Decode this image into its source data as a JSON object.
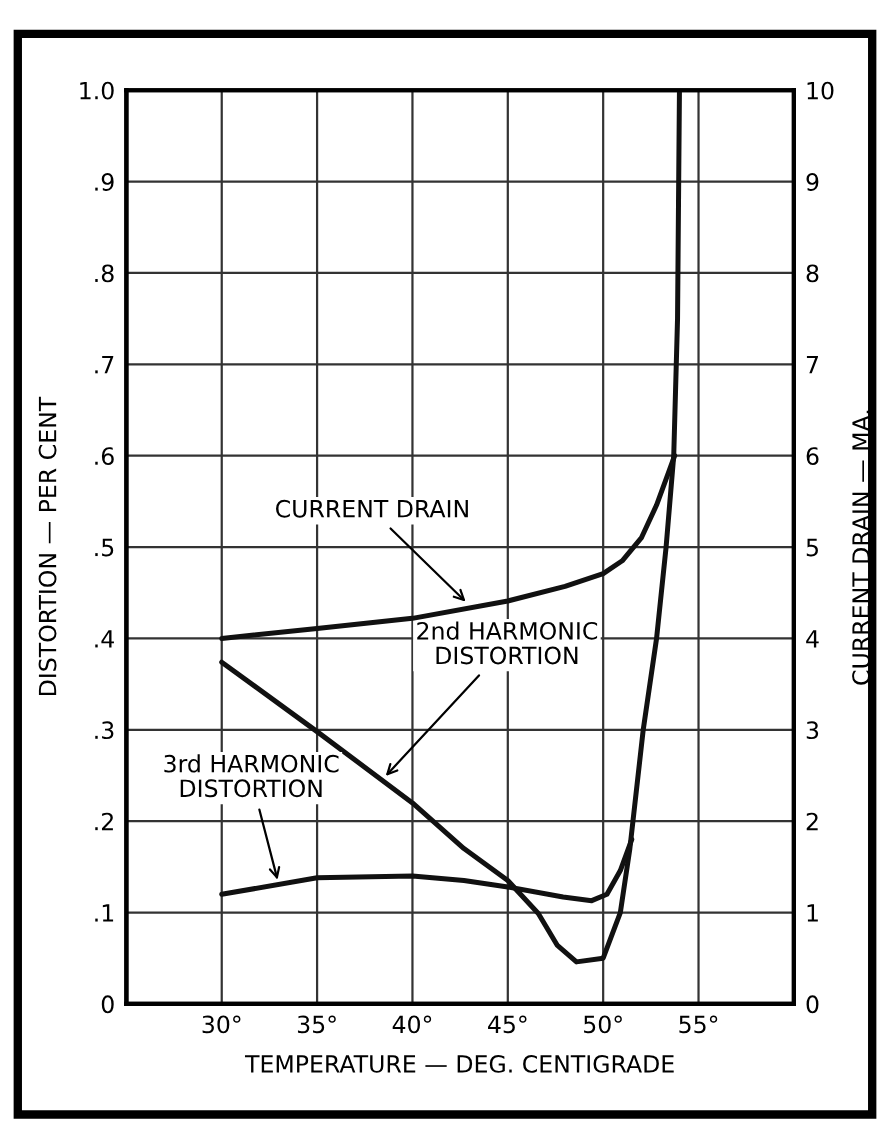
{
  "chart_data": {
    "type": "line",
    "xlabel": "TEMPERATURE — DEG. CENTIGRADE",
    "ylabel": "DISTORTION — PER CENT",
    "y2label": "CURRENT DRAIN — MA.",
    "xlim": [
      25,
      60
    ],
    "xticks": [
      {
        "value": 30,
        "label": "30°"
      },
      {
        "value": 35,
        "label": "35°"
      },
      {
        "value": 40,
        "label": "40°"
      },
      {
        "value": 45,
        "label": "45°"
      },
      {
        "value": 50,
        "label": "50°"
      },
      {
        "value": 55,
        "label": "55°"
      }
    ],
    "ylim": [
      0,
      1.0
    ],
    "yticks": [
      0,
      {
        "value": 0.1,
        "label": ".1"
      },
      {
        "value": 0.2,
        "label": ".2"
      },
      {
        "value": 0.3,
        "label": ".3"
      },
      {
        "value": 0.4,
        "label": ".4"
      },
      {
        "value": 0.5,
        "label": ".5"
      },
      {
        "value": 0.6,
        "label": ".6"
      },
      {
        "value": 0.7,
        "label": ".7"
      },
      {
        "value": 0.8,
        "label": ".8"
      },
      {
        "value": 0.9,
        "label": ".9"
      },
      {
        "value": 1.0,
        "label": "1.0"
      }
    ],
    "y2lim": [
      0,
      10
    ],
    "y2ticks": [
      0,
      1,
      2,
      3,
      4,
      5,
      6,
      7,
      8,
      9,
      10
    ],
    "grid": true,
    "legend": false,
    "marker": "none",
    "line_style": "solid",
    "series": [
      {
        "color": "#111111",
        "axis": "y2",
        "x": [
          30,
          35,
          40,
          45,
          48,
          50,
          51,
          52,
          52.8,
          53.4,
          53.75
        ],
        "values": [
          4.0,
          4.11,
          4.22,
          4.41,
          4.57,
          4.71,
          4.85,
          5.1,
          5.46,
          5.8,
          6.0
        ]
      },
      {
        "color": "#111111",
        "x": [
          30,
          35,
          40,
          42.7,
          45,
          46.6,
          47.6,
          48.6,
          50,
          50.9,
          51.4,
          52.1,
          52.8,
          53.3,
          53.7,
          53.9,
          54.0
        ],
        "values": [
          0.374,
          0.298,
          0.22,
          0.17,
          0.135,
          0.099,
          0.064,
          0.046,
          0.05,
          0.1,
          0.17,
          0.3,
          0.4,
          0.5,
          0.6,
          0.75,
          1.0
        ]
      },
      {
        "color": "#111111",
        "x": [
          30,
          35,
          40,
          42.7,
          45,
          47.9,
          49.4,
          50.2,
          50.9,
          51.5
        ],
        "values": [
          0.12,
          0.138,
          0.14,
          0.135,
          0.128,
          0.117,
          0.113,
          0.12,
          0.146,
          0.18
        ]
      }
    ],
    "annotations": [
      {
        "text": "CURRENT DRAIN",
        "x": 43,
        "y": 0.436
      },
      {
        "text": "2nd HARMONIC\nDISTORTION",
        "x": 38.4,
        "y": 0.245
      },
      {
        "text": "3rd HARMONIC\nDISTORTION",
        "x": 33,
        "y": 0.13
      }
    ]
  }
}
